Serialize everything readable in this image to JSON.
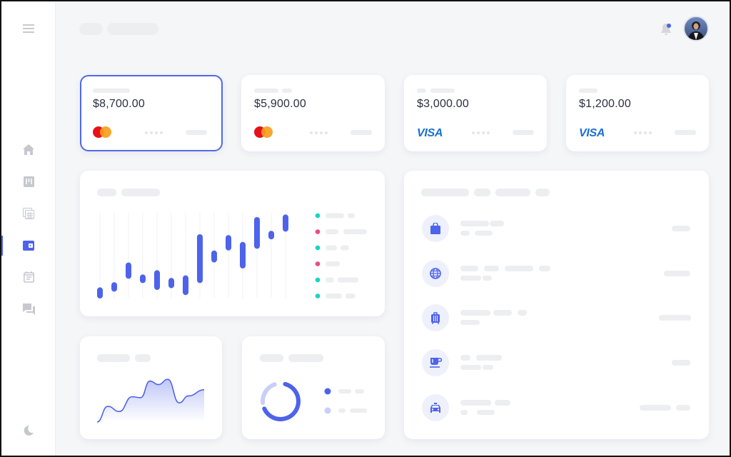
{
  "header": {
    "notification_dot_color": "#4d63ec",
    "icons": [
      "bell-icon",
      "avatar"
    ]
  },
  "sidebar": {
    "items": [
      {
        "icon": "menu-icon"
      },
      {
        "icon": "home-icon"
      },
      {
        "icon": "board-icon"
      },
      {
        "icon": "calculator-icon"
      },
      {
        "icon": "wallet-icon",
        "active": true
      },
      {
        "icon": "calendar-icon"
      },
      {
        "icon": "chat-icon"
      },
      {
        "icon": "dark-mode-icon"
      }
    ]
  },
  "cards": [
    {
      "amount": "$8,700.00",
      "brand": "mastercard",
      "selected": true
    },
    {
      "amount": "$5,900.00",
      "brand": "mastercard"
    },
    {
      "amount": "$3,000.00",
      "brand": "VISA"
    },
    {
      "amount": "$1,200.00",
      "brand": "VISA"
    }
  ],
  "colors": {
    "accent": "#4d63ec",
    "accent_light": "#c9cff7",
    "teal": "#19d3c5",
    "pink": "#e84d7a",
    "skeleton": "#eceef0"
  },
  "chart_data": [
    {
      "type": "bar",
      "subtype": "floating-range",
      "ylim": [
        0,
        100
      ],
      "grid": "vertical",
      "ranges": [
        [
          0,
          13
        ],
        [
          8,
          19
        ],
        [
          23,
          42
        ],
        [
          18,
          28
        ],
        [
          10,
          33
        ],
        [
          12,
          24
        ],
        [
          4,
          27
        ],
        [
          18,
          75
        ],
        [
          42,
          56
        ],
        [
          56,
          74
        ],
        [
          35,
          66
        ],
        [
          58,
          95
        ],
        [
          69,
          79
        ],
        [
          78,
          98
        ]
      ],
      "legend_dot_colors": [
        "#19d3c5",
        "#e84d7a",
        "#19d3c5",
        "#e84d7a",
        "#19d3c5",
        "#19d3c5"
      ],
      "legend": "right"
    },
    {
      "type": "area",
      "values": [
        0,
        18,
        12,
        29,
        28,
        47,
        43,
        49,
        22,
        30,
        37
      ],
      "ylim": [
        0,
        50
      ]
    },
    {
      "type": "pie",
      "subtype": "donut",
      "values": [
        64,
        21
      ],
      "colors": [
        "#4d63ec",
        "#c9cff7"
      ]
    }
  ],
  "transactions": [
    {
      "icon": "shopping-bag-icon"
    },
    {
      "icon": "globe-icon"
    },
    {
      "icon": "luggage-icon"
    },
    {
      "icon": "coffee-icon"
    },
    {
      "icon": "taxi-icon"
    }
  ]
}
